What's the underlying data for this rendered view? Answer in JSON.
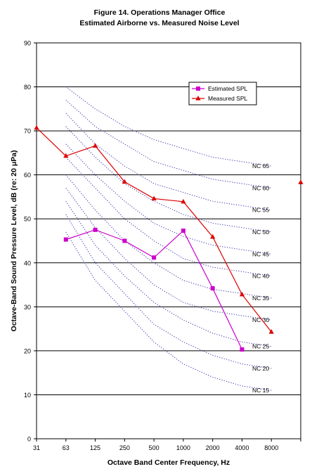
{
  "chart_data": {
    "type": "line",
    "title": "Figure 14. Operations Manager Office",
    "subtitle": "Estimated Airborne vs. Measured Noise Level",
    "xlabel": "Octave Band Center Frequency, Hz",
    "ylabel": "Octave-Band Sound Pressure Level, dB (re: 20 μPa)",
    "ylim": [
      0,
      90
    ],
    "yticks": [
      0,
      10,
      20,
      30,
      40,
      50,
      60,
      70,
      80,
      90
    ],
    "categories": [
      "31",
      "63",
      "125",
      "250",
      "500",
      "1000",
      "2000",
      "4000",
      "8000",
      ""
    ],
    "grid": "horizontal major gridlines",
    "legend_position": "top-right inside plot",
    "series": [
      {
        "name": "Estimated SPL",
        "color": "#cc00cc",
        "marker": "square",
        "x": [
          "63",
          "125",
          "250",
          "500",
          "1000",
          "2000",
          "4000"
        ],
        "values": [
          45.3,
          47.5,
          45.0,
          41.2,
          47.3,
          34.2,
          20.3
        ]
      },
      {
        "name": "Measured SPL",
        "color": "#dd0000",
        "marker": "triangle",
        "x": [
          "31",
          "63",
          "125",
          "250",
          "500",
          "1000",
          "2000",
          "4000",
          "8000",
          ""
        ],
        "values": [
          70.7,
          64.3,
          66.6,
          58.4,
          54.6,
          53.9,
          45.9,
          32.8,
          24.3,
          58.3
        ],
        "connected_points": 9
      }
    ],
    "nc_curves": {
      "color": "#3333aa",
      "style": "dotted",
      "x": [
        "63",
        "125",
        "250",
        "500",
        "1000",
        "2000",
        "4000",
        "8000"
      ],
      "curves": [
        {
          "label": "NC 65",
          "values": [
            80,
            75,
            71,
            68,
            66,
            64,
            63,
            62
          ]
        },
        {
          "label": "NC 60",
          "values": [
            77,
            71,
            67,
            63,
            61,
            59,
            58,
            57
          ]
        },
        {
          "label": "NC 55",
          "values": [
            74,
            67,
            62,
            58,
            56,
            54,
            53,
            52
          ]
        },
        {
          "label": "NC 50",
          "values": [
            71,
            64,
            58,
            54,
            51,
            49,
            48,
            47
          ]
        },
        {
          "label": "NC 45",
          "values": [
            67,
            60,
            54,
            49,
            46,
            44,
            43,
            42
          ]
        },
        {
          "label": "NC 40",
          "values": [
            64,
            57,
            50,
            45,
            41,
            39,
            38,
            37
          ]
        },
        {
          "label": "NC 35",
          "values": [
            60,
            52,
            45,
            40,
            36,
            34,
            33,
            32
          ]
        },
        {
          "label": "NC 30",
          "values": [
            57,
            48,
            41,
            35,
            31,
            29,
            28,
            27
          ]
        },
        {
          "label": "NC 25",
          "values": [
            54,
            44,
            37,
            31,
            27,
            24,
            22,
            21
          ]
        },
        {
          "label": "NC 20",
          "values": [
            51,
            40,
            33,
            26,
            22,
            19,
            17,
            16
          ]
        },
        {
          "label": "NC 15",
          "values": [
            47,
            36,
            29,
            22,
            17,
            14,
            12,
            11
          ]
        }
      ]
    }
  }
}
